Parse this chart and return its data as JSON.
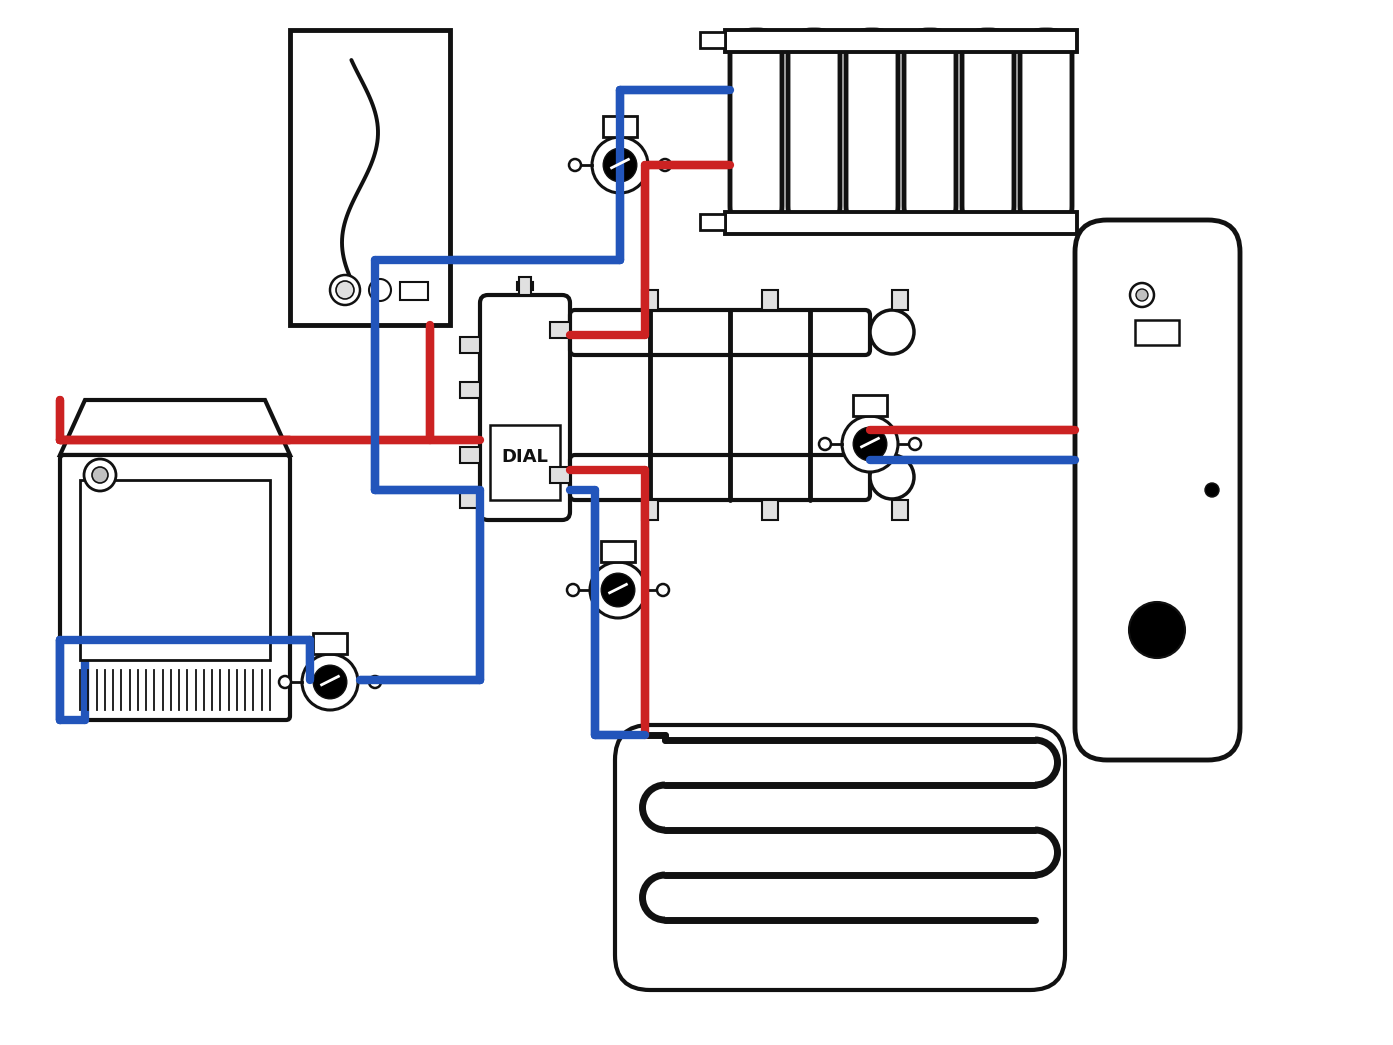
{
  "bg": "#ffffff",
  "red": "#cc2222",
  "blue": "#2255bb",
  "blk": "#111111",
  "lgray": "#e0e0e0",
  "mgray": "#c0c0c0",
  "plw": 6.0,
  "fw": 13.93,
  "fh": 10.45,
  "dpi": 100
}
